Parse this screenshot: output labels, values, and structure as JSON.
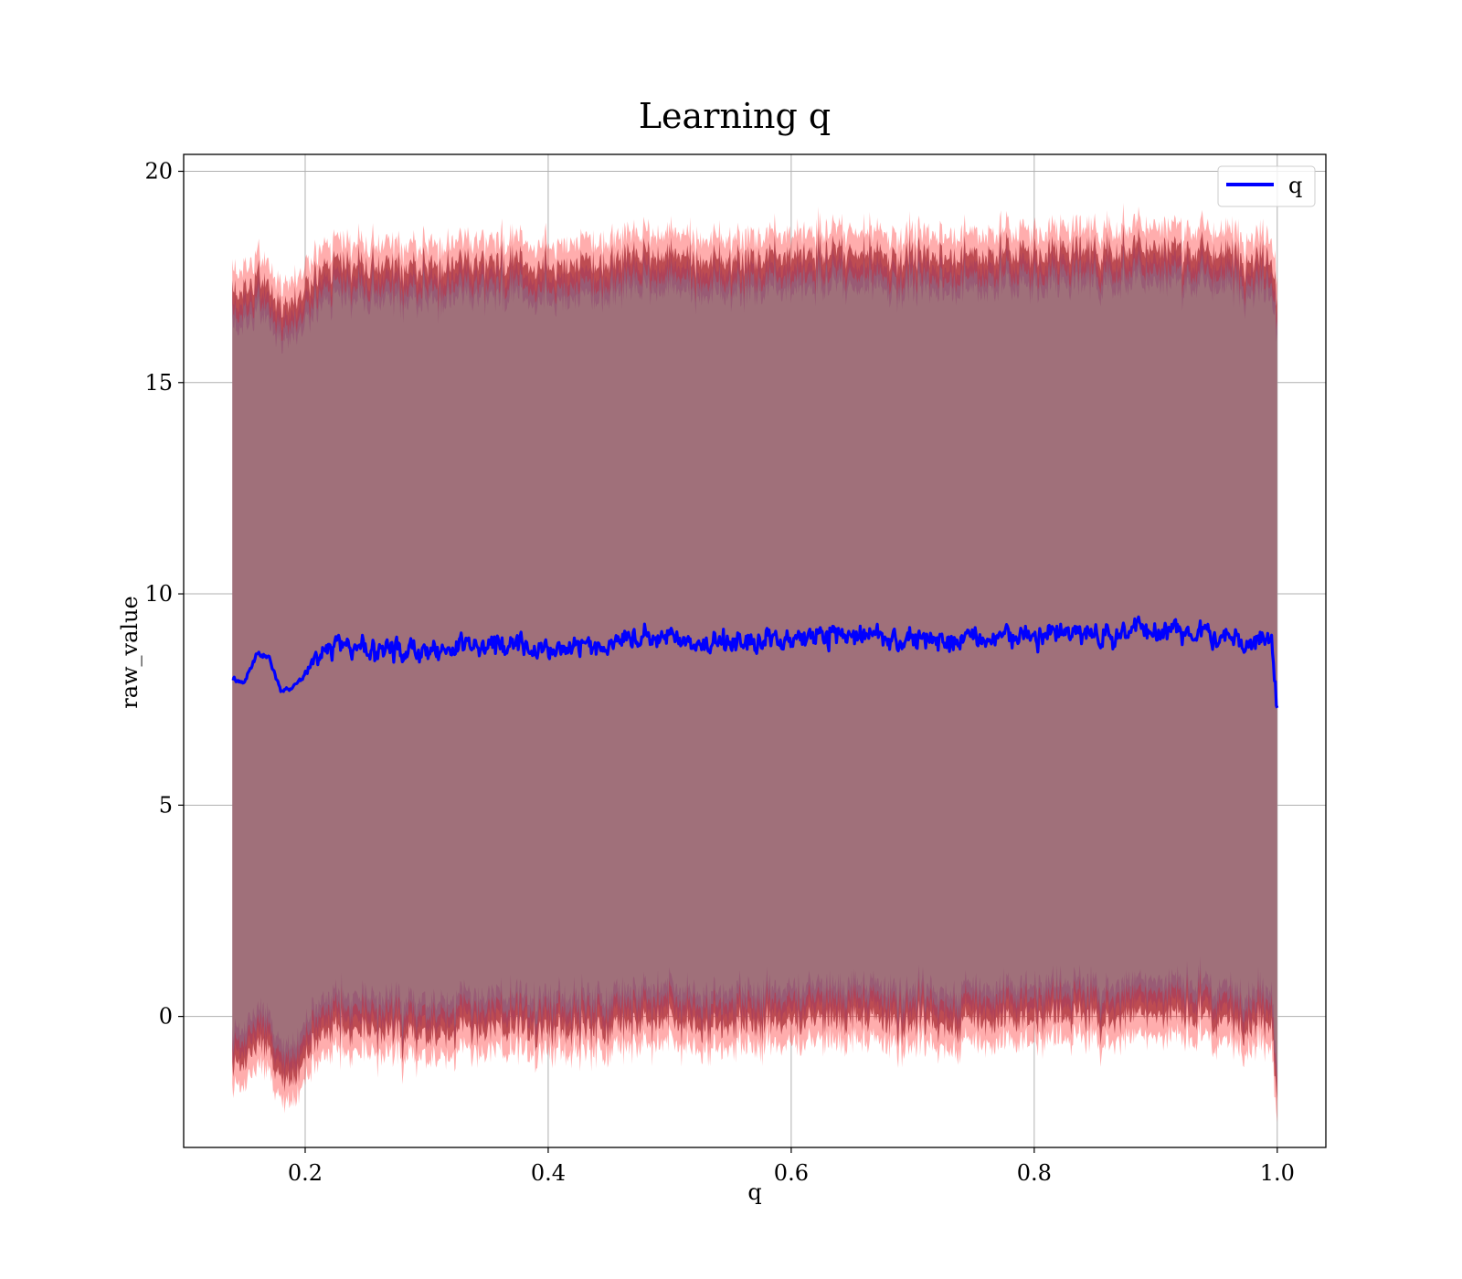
{
  "chart_data": {
    "type": "line",
    "title": "Learning q",
    "xlabel": "q",
    "ylabel": "raw_value",
    "xlim": [
      0.1,
      1.04
    ],
    "ylim": [
      -3.1,
      20.4
    ],
    "x_ticks": [
      0.2,
      0.4,
      0.6,
      0.8,
      1.0
    ],
    "x_tick_labels": [
      "0.2",
      "0.4",
      "0.6",
      "0.8",
      "1.0"
    ],
    "y_ticks": [
      0,
      5,
      10,
      15,
      20
    ],
    "y_tick_labels": [
      "0",
      "5",
      "10",
      "15",
      "20"
    ],
    "grid": true,
    "legend": {
      "position": "top-right",
      "entries": [
        "q"
      ]
    },
    "colors": {
      "line": "#0000ff",
      "band_outer": "#ff0000",
      "band_inner": "#8b2a6a",
      "band_fill": "#a0707a",
      "grid": "#b0b0b0"
    },
    "x_range": [
      0.14,
      1.0
    ],
    "series": [
      {
        "name": "q",
        "x": [
          0.14,
          0.15,
          0.16,
          0.17,
          0.18,
          0.19,
          0.2,
          0.21,
          0.22,
          0.23,
          0.25,
          0.27,
          0.3,
          0.33,
          0.36,
          0.4,
          0.43,
          0.46,
          0.5,
          0.53,
          0.56,
          0.6,
          0.63,
          0.66,
          0.7,
          0.73,
          0.76,
          0.8,
          0.83,
          0.86,
          0.89,
          0.92,
          0.95,
          0.98,
          0.995,
          1.0
        ],
        "values": [
          8.0,
          7.9,
          8.6,
          8.5,
          7.7,
          7.8,
          8.1,
          8.5,
          8.7,
          8.8,
          8.6,
          8.7,
          8.6,
          8.8,
          8.8,
          8.7,
          8.8,
          8.9,
          9.0,
          8.8,
          8.9,
          8.9,
          9.0,
          9.0,
          8.9,
          8.9,
          9.0,
          9.0,
          9.1,
          9.0,
          9.2,
          9.1,
          9.0,
          8.9,
          9.0,
          7.3
        ]
      }
    ],
    "band": {
      "upper": [
        17.2,
        17.1,
        17.5,
        17.3,
        16.8,
        16.9,
        17.2,
        17.6,
        17.8,
        17.9,
        17.7,
        17.8,
        17.7,
        17.9,
        17.9,
        17.8,
        17.9,
        18.0,
        18.1,
        17.9,
        18.0,
        18.0,
        18.1,
        18.1,
        18.0,
        18.0,
        18.1,
        18.1,
        18.2,
        18.1,
        18.3,
        18.2,
        18.1,
        18.0,
        18.1,
        17.0
      ],
      "lower": [
        -1.2,
        -1.1,
        -0.6,
        -0.8,
        -1.5,
        -1.4,
        -1.0,
        -0.6,
        -0.4,
        -0.3,
        -0.5,
        -0.4,
        -0.5,
        -0.3,
        -0.3,
        -0.4,
        -0.3,
        -0.2,
        -0.1,
        -0.3,
        -0.2,
        -0.2,
        -0.1,
        -0.1,
        -0.2,
        -0.2,
        -0.1,
        -0.1,
        0.0,
        -0.1,
        0.1,
        0.0,
        -0.1,
        -0.2,
        -0.1,
        -2.0
      ]
    }
  }
}
